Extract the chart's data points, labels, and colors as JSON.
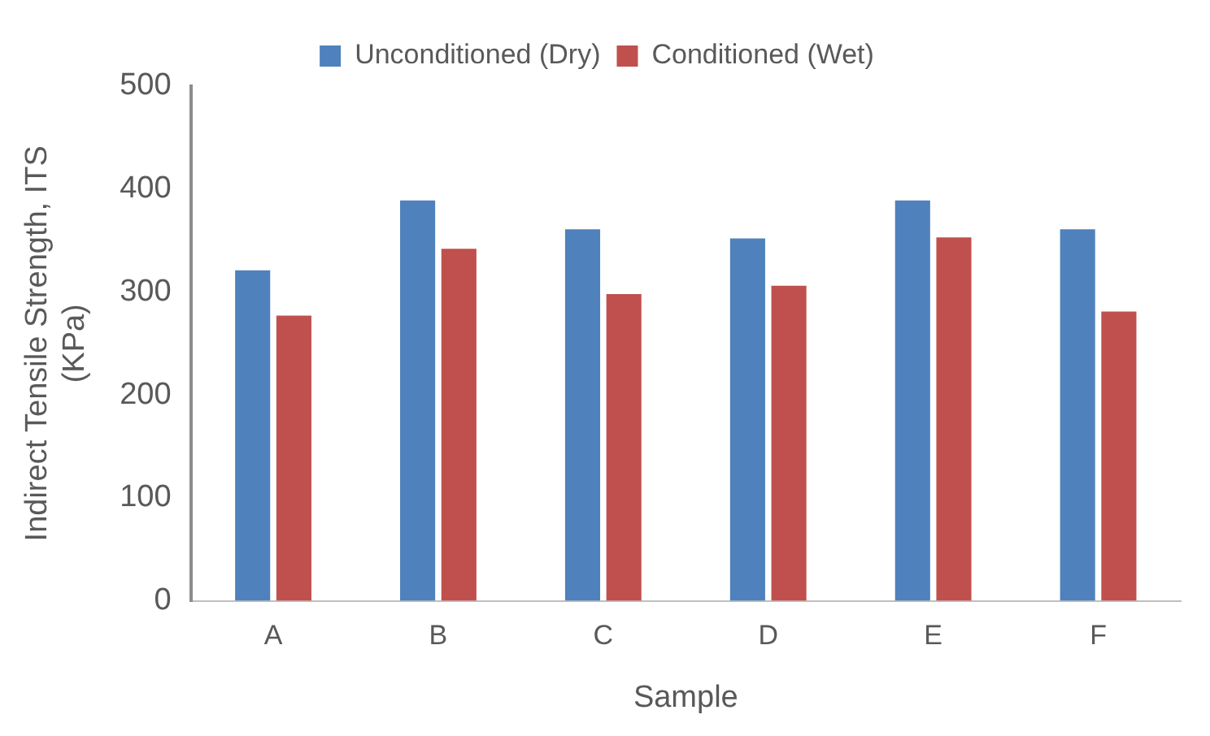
{
  "chart_data": {
    "type": "bar",
    "xlabel": "Sample",
    "ylabel": "Indirect Tensile Strength, ITS (KPa)",
    "categories": [
      "A",
      "B",
      "C",
      "D",
      "E",
      "F"
    ],
    "series": [
      {
        "name": "Unconditioned (Dry)",
        "color": "#4f81bd",
        "values": [
          321,
          389,
          361,
          352,
          389,
          361
        ]
      },
      {
        "name": "Conditioned (Wet)",
        "color": "#c0504d",
        "values": [
          277,
          342,
          298,
          306,
          353,
          281
        ]
      }
    ],
    "ylim": [
      0,
      500
    ],
    "yticks": [
      0,
      100,
      200,
      300,
      400,
      500
    ],
    "grid": false,
    "legend": "top"
  }
}
